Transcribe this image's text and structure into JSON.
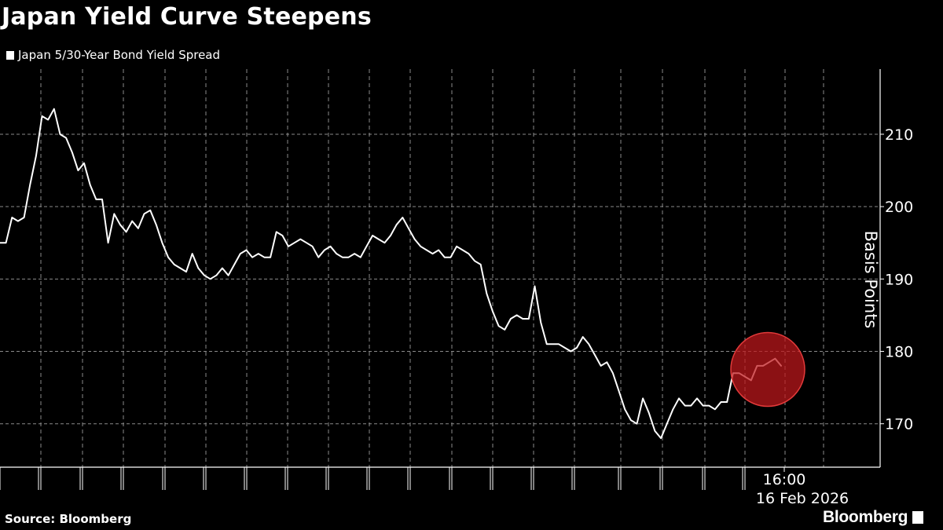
{
  "chart_data": {
    "type": "line",
    "title": "Japan Yield Curve Steepens",
    "ylabel": "Basis Points",
    "ylim": [
      164,
      219
    ],
    "y_ticks": [
      170,
      180,
      190,
      200,
      210
    ],
    "grid": true,
    "legend": "top-left",
    "x_annotation_time": "16:00",
    "x_annotation_date": "16 Feb 2026",
    "series": [
      {
        "name": "Japan 5/30-Year Bond Yield Spread",
        "color": "#ffffff",
        "values": [
          195,
          195,
          198.5,
          198,
          198.5,
          203,
          207,
          212.5,
          212,
          213.5,
          210,
          209.5,
          207.5,
          205,
          206,
          203,
          201,
          201,
          195,
          199,
          197.5,
          196.5,
          198,
          197,
          199,
          199.5,
          197.5,
          195,
          193,
          192,
          191.5,
          191,
          193.5,
          191.5,
          190.5,
          190,
          190.5,
          191.5,
          190.5,
          192,
          193.5,
          194,
          193,
          193.5,
          193,
          193,
          196.5,
          196,
          194.5,
          195,
          195.5,
          195,
          194.5,
          193,
          194,
          194.5,
          193.5,
          193,
          193,
          193.5,
          193,
          194.5,
          196,
          195.5,
          195,
          196,
          197.5,
          198.5,
          197,
          195.5,
          194.5,
          194,
          193.5,
          194,
          193,
          193,
          194.5,
          194,
          193.5,
          192.5,
          192,
          188,
          185.5,
          183.5,
          183,
          184.5,
          185,
          184.5,
          184.5,
          189,
          184,
          181,
          181,
          181,
          180.5,
          180,
          180.5,
          182,
          181,
          179.5,
          178,
          178.5,
          177,
          174.5,
          172,
          170.5,
          170,
          173.5,
          171.5,
          169,
          168,
          170,
          172,
          173.5,
          172.5,
          172.5,
          173.5,
          172.5,
          172.5,
          172,
          173,
          173,
          177,
          177,
          176.5,
          176,
          178,
          178,
          178.5,
          179,
          178
        ]
      }
    ],
    "highlight": {
      "value": 177.5,
      "color": "#c0181c"
    }
  },
  "source": "Source: Bloomberg",
  "brand": "Bloomberg"
}
